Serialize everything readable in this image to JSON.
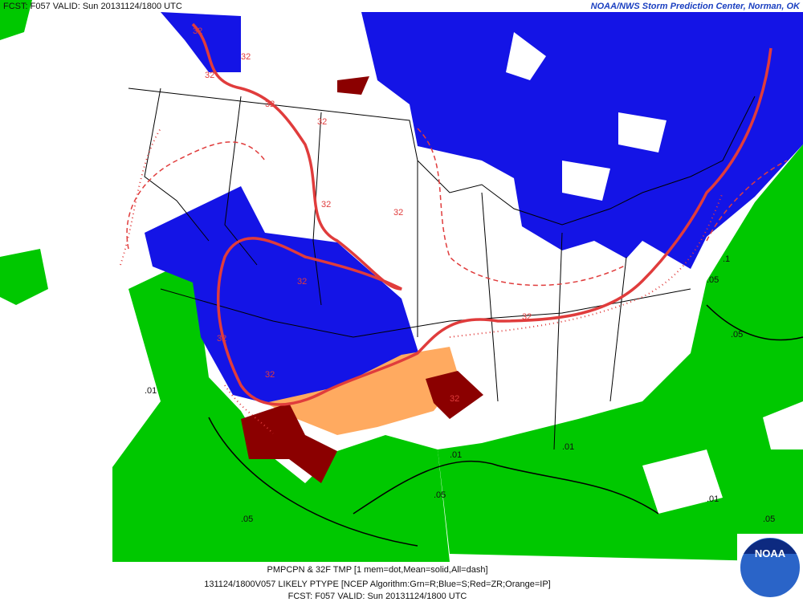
{
  "header": {
    "left": "FCST: F057  VALID: Sun  20131124/1800 UTC",
    "right": "NOAA/NWS Storm Prediction Center, Norman, OK"
  },
  "footer": {
    "line1": "PMPCPN & 32F TMP [1 mem=dot,Mean=solid,All=dash]",
    "line2": "131124/1800V057 LIKELY PTYPE [NCEP Algorithm:Grn=R;Blue=S;Red=ZR;Orange=IP]",
    "line3": "FCST: F057  VALID: Sun  20131124/1800 UTC"
  },
  "logo": "NOAA",
  "contour_labels": [
    "32",
    "32",
    "32",
    "32",
    "32",
    "32",
    "32",
    "32",
    "32",
    "32",
    "32",
    "32",
    ".05",
    ".01",
    ".05",
    ".1",
    ".05",
    ".01",
    ".05",
    ".01",
    ".05",
    ".01"
  ]
}
